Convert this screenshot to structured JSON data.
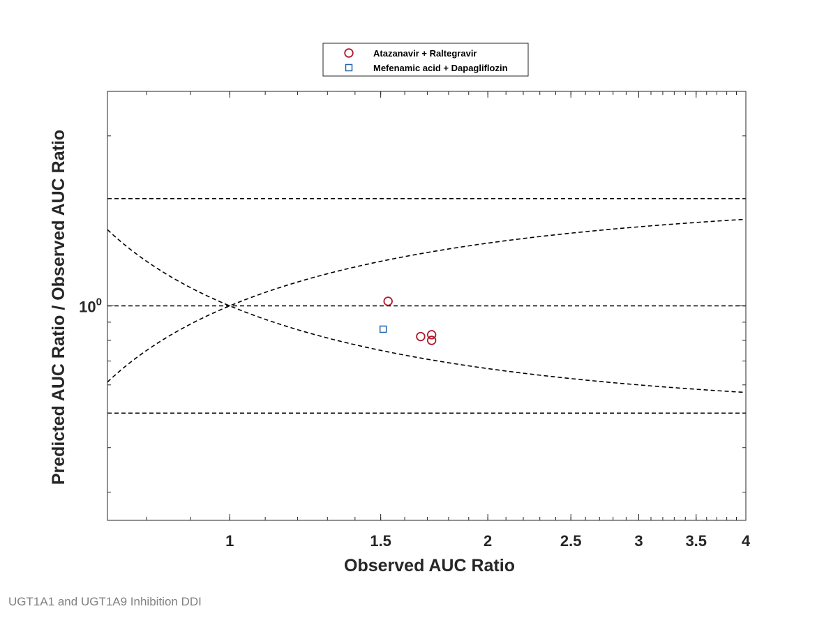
{
  "chart_data": {
    "type": "scatter",
    "xlabel": "Observed AUC Ratio",
    "ylabel": "Predicted AUC Ratio / Observed AUC Ratio",
    "xscale": "log",
    "yscale": "log",
    "xlim": [
      0.72,
      4.0
    ],
    "ylim": [
      0.25,
      4.0
    ],
    "xticks": [
      {
        "value": 1,
        "label": "1"
      },
      {
        "value": 1.5,
        "label": "1.5"
      },
      {
        "value": 2,
        "label": "2"
      },
      {
        "value": 2.5,
        "label": "2.5"
      },
      {
        "value": 3,
        "label": "3"
      },
      {
        "value": 3.5,
        "label": "3.5"
      },
      {
        "value": 4,
        "label": "4"
      }
    ],
    "yticks": [
      {
        "value": 1,
        "base": "10",
        "exponent": "0"
      }
    ],
    "grid": false,
    "legend_position": "top-center",
    "reference_lines": {
      "unity": 1,
      "twofold": [
        0.5,
        2
      ],
      "guest_limit_delta": 1
    },
    "series": [
      {
        "name": "Atazanavir + Raltegravir",
        "marker": "circle",
        "color": "#b2182b",
        "points": [
          {
            "x": 1.53,
            "y": 1.03
          },
          {
            "x": 1.67,
            "y": 0.82
          },
          {
            "x": 1.72,
            "y": 0.83
          },
          {
            "x": 1.72,
            "y": 0.8
          }
        ]
      },
      {
        "name": "Mefenamic acid + Dapagliflozin",
        "marker": "square",
        "color": "#2166ac",
        "points": [
          {
            "x": 1.51,
            "y": 0.86
          }
        ]
      }
    ]
  },
  "caption": "UGT1A1 and UGT1A9 Inhibition DDI"
}
